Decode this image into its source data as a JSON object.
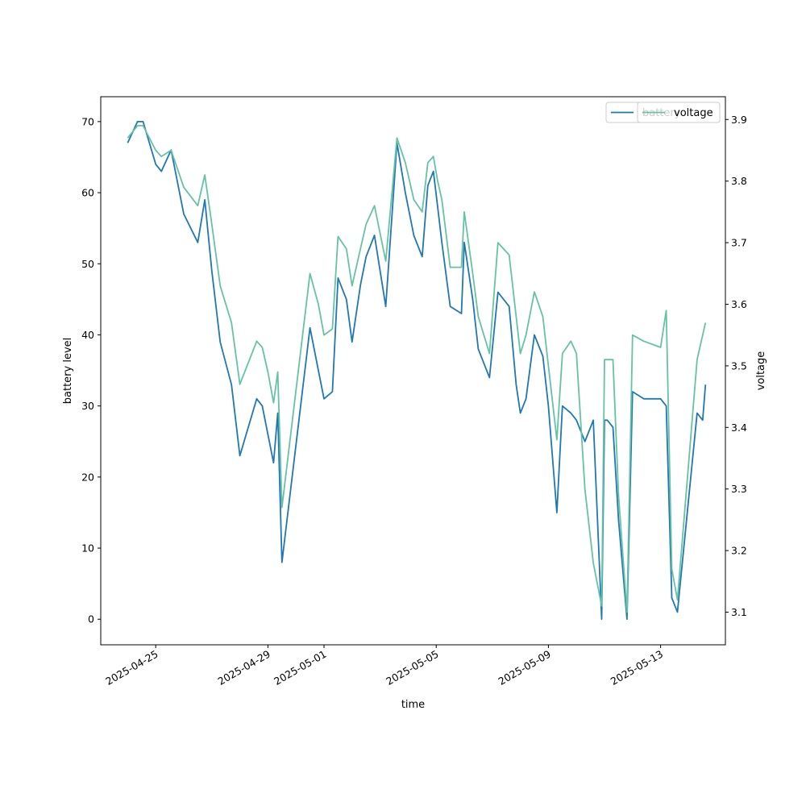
{
  "chart_data": {
    "type": "line",
    "xlabel": "time",
    "ylabel": "battery level",
    "ylabel_right": "voltage",
    "x_ticks": [
      "2025-04-25",
      "2025-04-29",
      "2025-05-01",
      "2025-05-05",
      "2025-05-09",
      "2025-05-13"
    ],
    "x_tick_days": [
      1,
      5,
      7,
      11,
      15,
      19
    ],
    "x_range_days": [
      -0.96,
      21.31
    ],
    "y_left_ticks": [
      0,
      10,
      20,
      30,
      40,
      50,
      60,
      70
    ],
    "y_left_range": [
      -3.6,
      73.5
    ],
    "y_right_ticks": [
      3.1,
      3.2,
      3.3,
      3.4,
      3.5,
      3.6,
      3.7,
      3.8,
      3.9
    ],
    "y_right_range": [
      3.047,
      3.937
    ],
    "grid": false,
    "legend_placement": "top-right",
    "colors": {
      "battery": "#1f77b4",
      "voltage": "#66c2a5"
    },
    "series": [
      {
        "name": "battery",
        "axis": "left",
        "x": [
          0.0,
          0.35,
          0.55,
          1.0,
          1.2,
          1.55,
          2.0,
          2.5,
          2.75,
          3.0,
          3.3,
          3.7,
          4.0,
          4.6,
          4.8,
          5.0,
          5.2,
          5.35,
          5.5,
          6.5,
          6.8,
          7.0,
          7.3,
          7.5,
          7.8,
          8.0,
          8.3,
          8.5,
          8.8,
          9.2,
          9.6,
          9.9,
          10.2,
          10.5,
          10.7,
          10.9,
          11.05,
          11.2,
          11.5,
          11.9,
          12.0,
          12.3,
          12.5,
          12.9,
          13.2,
          13.6,
          13.85,
          14.0,
          14.2,
          14.5,
          14.8,
          15.0,
          15.3,
          15.5,
          15.8,
          16.0,
          16.3,
          16.6,
          16.9,
          17.0,
          17.1,
          17.3,
          17.5,
          17.8,
          18.0,
          18.4,
          19.0,
          19.2,
          19.4,
          19.6,
          20.3,
          20.5,
          20.6
        ],
        "values": [
          67,
          70,
          70,
          64,
          63,
          66,
          57,
          53,
          59,
          49,
          39,
          33,
          23,
          31,
          30,
          26,
          22,
          29,
          8,
          41,
          35,
          31,
          32,
          48,
          45,
          39,
          47,
          51,
          54,
          44,
          67,
          60,
          54,
          51,
          61,
          63,
          58,
          53,
          44,
          43,
          53,
          45,
          38,
          34,
          46,
          44,
          33,
          29,
          31,
          40,
          37,
          30,
          15,
          30,
          29,
          28,
          25,
          28,
          0,
          28,
          28,
          27,
          14,
          0,
          32,
          31,
          31,
          30,
          3,
          1,
          29,
          28,
          33
        ]
      },
      {
        "name": "voltage",
        "axis": "right",
        "x": [
          0.0,
          0.35,
          0.55,
          1.0,
          1.2,
          1.55,
          2.0,
          2.5,
          2.75,
          3.0,
          3.3,
          3.7,
          4.0,
          4.6,
          4.8,
          5.0,
          5.2,
          5.35,
          5.5,
          6.5,
          6.8,
          7.0,
          7.3,
          7.5,
          7.8,
          8.0,
          8.3,
          8.5,
          8.8,
          9.2,
          9.6,
          9.9,
          10.2,
          10.5,
          10.7,
          10.9,
          11.05,
          11.2,
          11.5,
          11.9,
          12.0,
          12.3,
          12.5,
          12.9,
          13.2,
          13.6,
          13.85,
          14.0,
          14.2,
          14.5,
          14.8,
          15.0,
          15.3,
          15.5,
          15.8,
          16.0,
          16.3,
          16.6,
          16.9,
          17.0,
          17.1,
          17.3,
          17.5,
          17.8,
          18.0,
          18.4,
          19.0,
          19.2,
          19.4,
          19.6,
          20.3,
          20.5,
          20.6
        ],
        "values": [
          3.87,
          3.89,
          3.89,
          3.85,
          3.84,
          3.85,
          3.79,
          3.76,
          3.81,
          3.73,
          3.63,
          3.57,
          3.47,
          3.54,
          3.53,
          3.49,
          3.44,
          3.49,
          3.27,
          3.65,
          3.6,
          3.55,
          3.56,
          3.71,
          3.69,
          3.63,
          3.69,
          3.73,
          3.76,
          3.67,
          3.87,
          3.83,
          3.77,
          3.75,
          3.83,
          3.84,
          3.8,
          3.77,
          3.66,
          3.66,
          3.75,
          3.65,
          3.58,
          3.52,
          3.7,
          3.68,
          3.58,
          3.52,
          3.55,
          3.62,
          3.58,
          3.5,
          3.38,
          3.52,
          3.54,
          3.52,
          3.3,
          3.18,
          3.11,
          3.51,
          3.51,
          3.51,
          3.29,
          3.1,
          3.55,
          3.54,
          3.53,
          3.59,
          3.17,
          3.12,
          3.51,
          3.55,
          3.57
        ]
      }
    ]
  }
}
